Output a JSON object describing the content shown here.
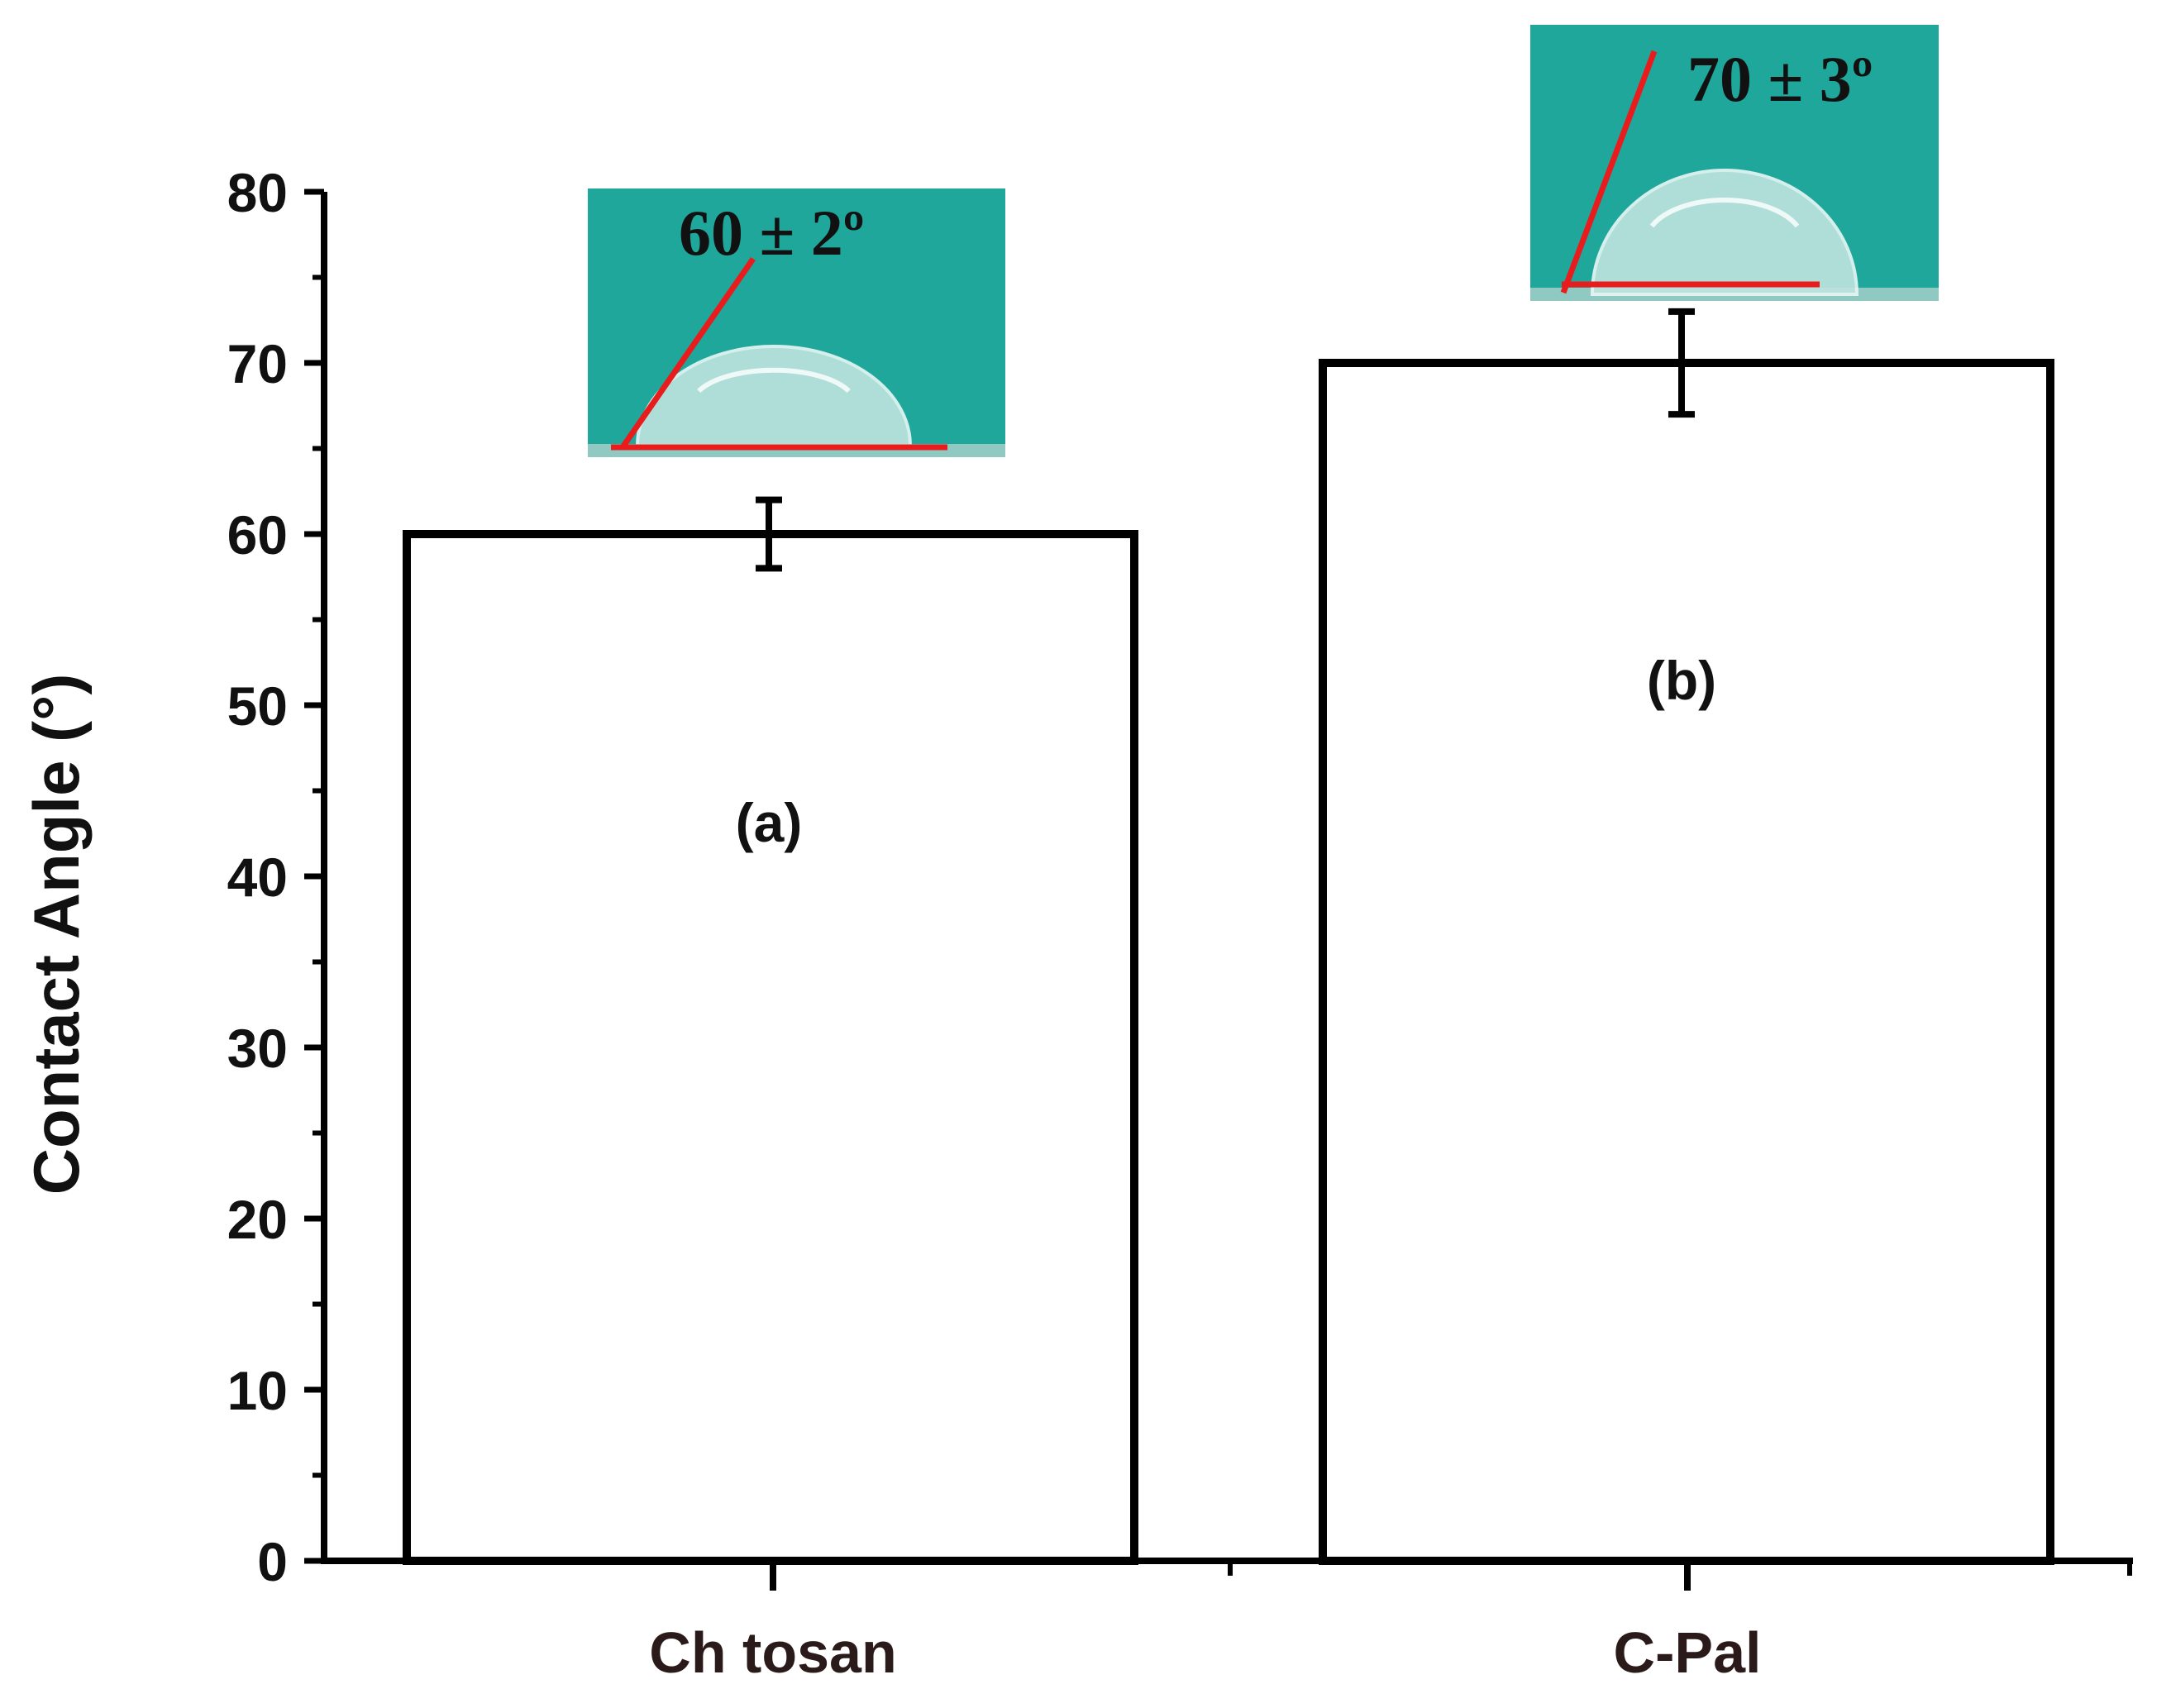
{
  "chart_data": {
    "type": "bar",
    "categories": [
      "Ch tosan",
      "C-Pal"
    ],
    "series": [
      {
        "values": [
          60,
          70
        ],
        "errors": [
          2,
          3
        ]
      }
    ],
    "bar_labels": [
      "(a)",
      "(b)"
    ],
    "insets": [
      "60 ± 2º",
      "70 ± 3º"
    ],
    "ylabel": "Contact Angle (°)",
    "xlabel": "",
    "ylim": [
      0,
      80
    ],
    "yticks": [
      0,
      10,
      20,
      30,
      40,
      50,
      60,
      70,
      80
    ],
    "grid": false,
    "colors": {
      "bar_fill": "#ffffff",
      "bar_stroke": "#000000",
      "inset_bg": "#1fa79c",
      "contact_line": "#e81c1c"
    }
  }
}
